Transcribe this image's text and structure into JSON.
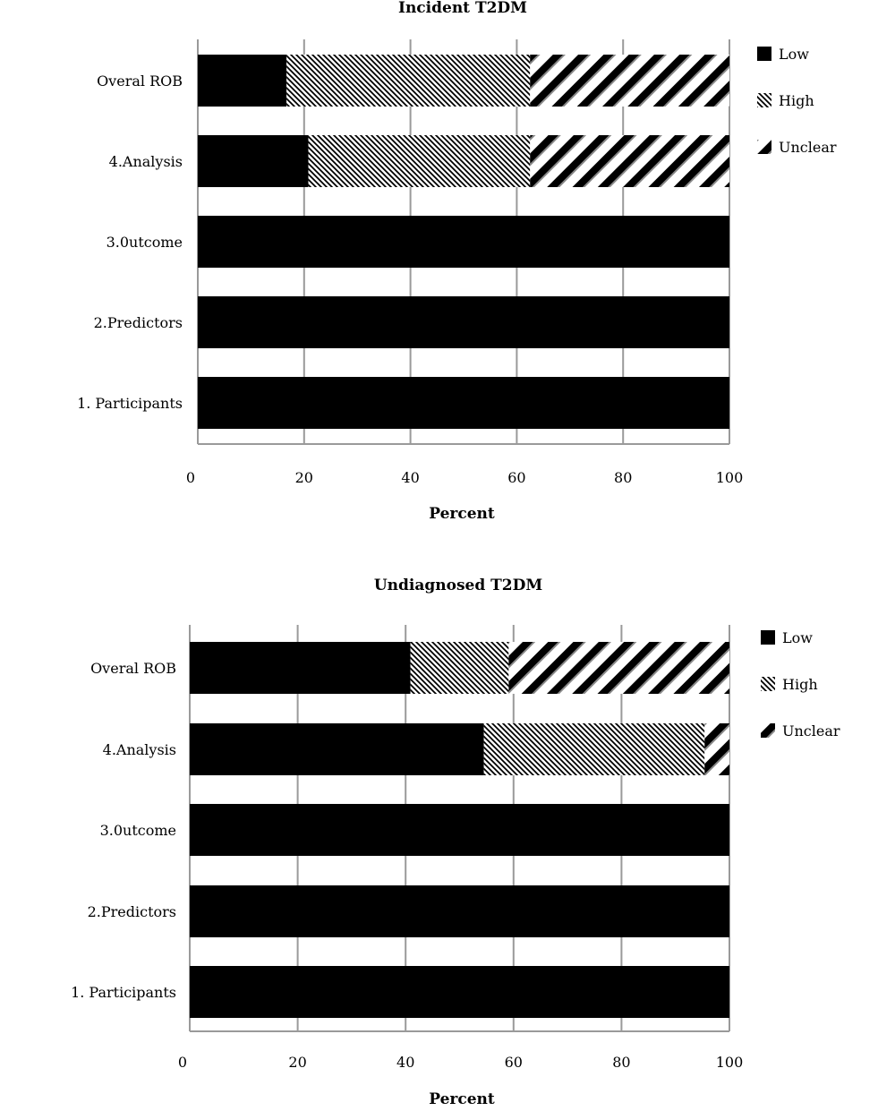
{
  "chart_data": [
    {
      "type": "bar",
      "orientation": "horizontal",
      "stacked": true,
      "title": "Incident T2DM",
      "xlabel": "Percent",
      "ylabel": "",
      "xlim": [
        0,
        100
      ],
      "xticks": [
        "0",
        "20",
        "40",
        "60",
        "80",
        "100"
      ],
      "grid": "vertical",
      "legend_position": "right",
      "categories": [
        "Overal ROB",
        "4.Analysis",
        "3.0utcome",
        "2.Predictors",
        "1. Participants"
      ],
      "series": [
        {
          "name": "Low",
          "pattern": "solid",
          "color": "#000000",
          "values": [
            16.7,
            20.8,
            100,
            100,
            100
          ]
        },
        {
          "name": "High",
          "pattern": "fine-hatch",
          "color": "#000000",
          "values": [
            45.8,
            41.7,
            0,
            0,
            0
          ]
        },
        {
          "name": "Unclear",
          "pattern": "wide-hatch",
          "color": "#000000",
          "values": [
            37.5,
            37.5,
            0,
            0,
            0
          ]
        }
      ]
    },
    {
      "type": "bar",
      "orientation": "horizontal",
      "stacked": true,
      "title": "Undiagnosed T2DM",
      "xlabel": "Percent",
      "ylabel": "",
      "xlim": [
        0,
        100
      ],
      "xticks": [
        "0",
        "20",
        "40",
        "60",
        "80",
        "100"
      ],
      "grid": "vertical",
      "legend_position": "right",
      "categories": [
        "Overal ROB",
        "4.Analysis",
        "3.0utcome",
        "2.Predictors",
        "1. Participants"
      ],
      "series": [
        {
          "name": "Low",
          "pattern": "solid",
          "color": "#000000",
          "values": [
            40.9,
            54.5,
            100,
            100,
            100
          ]
        },
        {
          "name": "High",
          "pattern": "fine-hatch",
          "color": "#000000",
          "values": [
            18.2,
            40.9,
            0,
            0,
            0
          ]
        },
        {
          "name": "Unclear",
          "pattern": "wide-hatch",
          "color": "#000000",
          "values": [
            40.9,
            4.6,
            0,
            0,
            0
          ]
        }
      ]
    }
  ]
}
